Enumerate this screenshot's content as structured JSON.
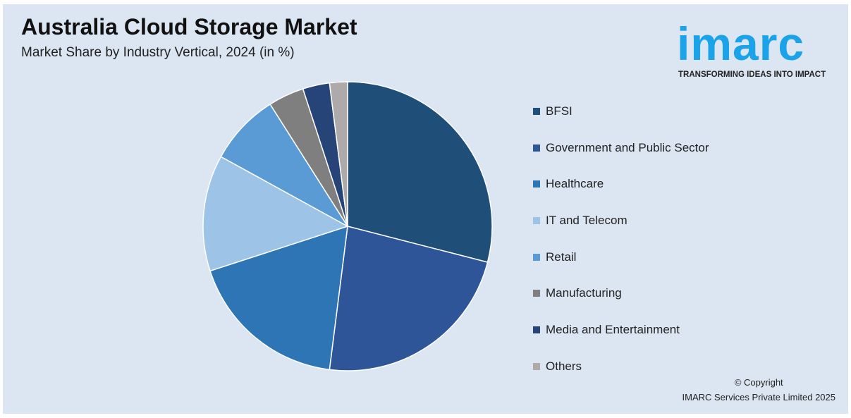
{
  "title": "Australia Cloud Storage Market",
  "subtitle": "Market Share by Industry Vertical, 2024 (in %)",
  "logo": {
    "word": "imarc",
    "tagline": "TRANSFORMING IDEAS INTO IMPACT"
  },
  "copyright": {
    "line1": "© Copyright",
    "line2": "IMARC Services Private Limited 2025"
  },
  "chart_data": {
    "type": "pie",
    "title": "Australia Cloud Storage Market",
    "subtitle": "Market Share by Industry Vertical, 2024 (in %)",
    "legend_position": "right",
    "categories": [
      "BFSI",
      "Government and Public Sector",
      "Healthcare",
      "IT and Telecom",
      "Retail",
      "Manufacturing",
      "Media and Entertainment",
      "Others"
    ],
    "values": [
      29,
      23,
      18,
      13,
      8,
      4,
      3,
      2
    ],
    "colors": [
      "#1f4e79",
      "#2e5597",
      "#2e75b6",
      "#9dc3e6",
      "#5b9bd5",
      "#7f7f7f",
      "#264478",
      "#aeaaaa"
    ]
  }
}
